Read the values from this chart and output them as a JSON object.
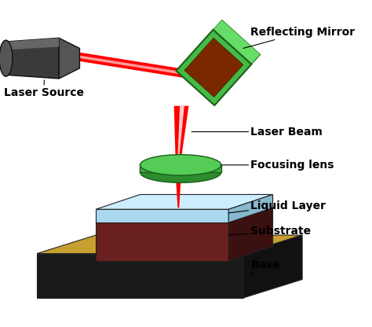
{
  "bg_color": "#ffffff",
  "labels": {
    "laser_source": "Laser Source",
    "reflecting_mirror": "Reflecting Mirror",
    "laser_beam": "Laser Beam",
    "focusing_lens": "Focusing lens",
    "liquid_layer": "Liquid Layer",
    "substrate": "Substrate",
    "base": "Base"
  },
  "label_fontsize": 10,
  "label_fontweight": "bold",
  "figsize": [
    4.74,
    4.16
  ],
  "dpi": 100
}
